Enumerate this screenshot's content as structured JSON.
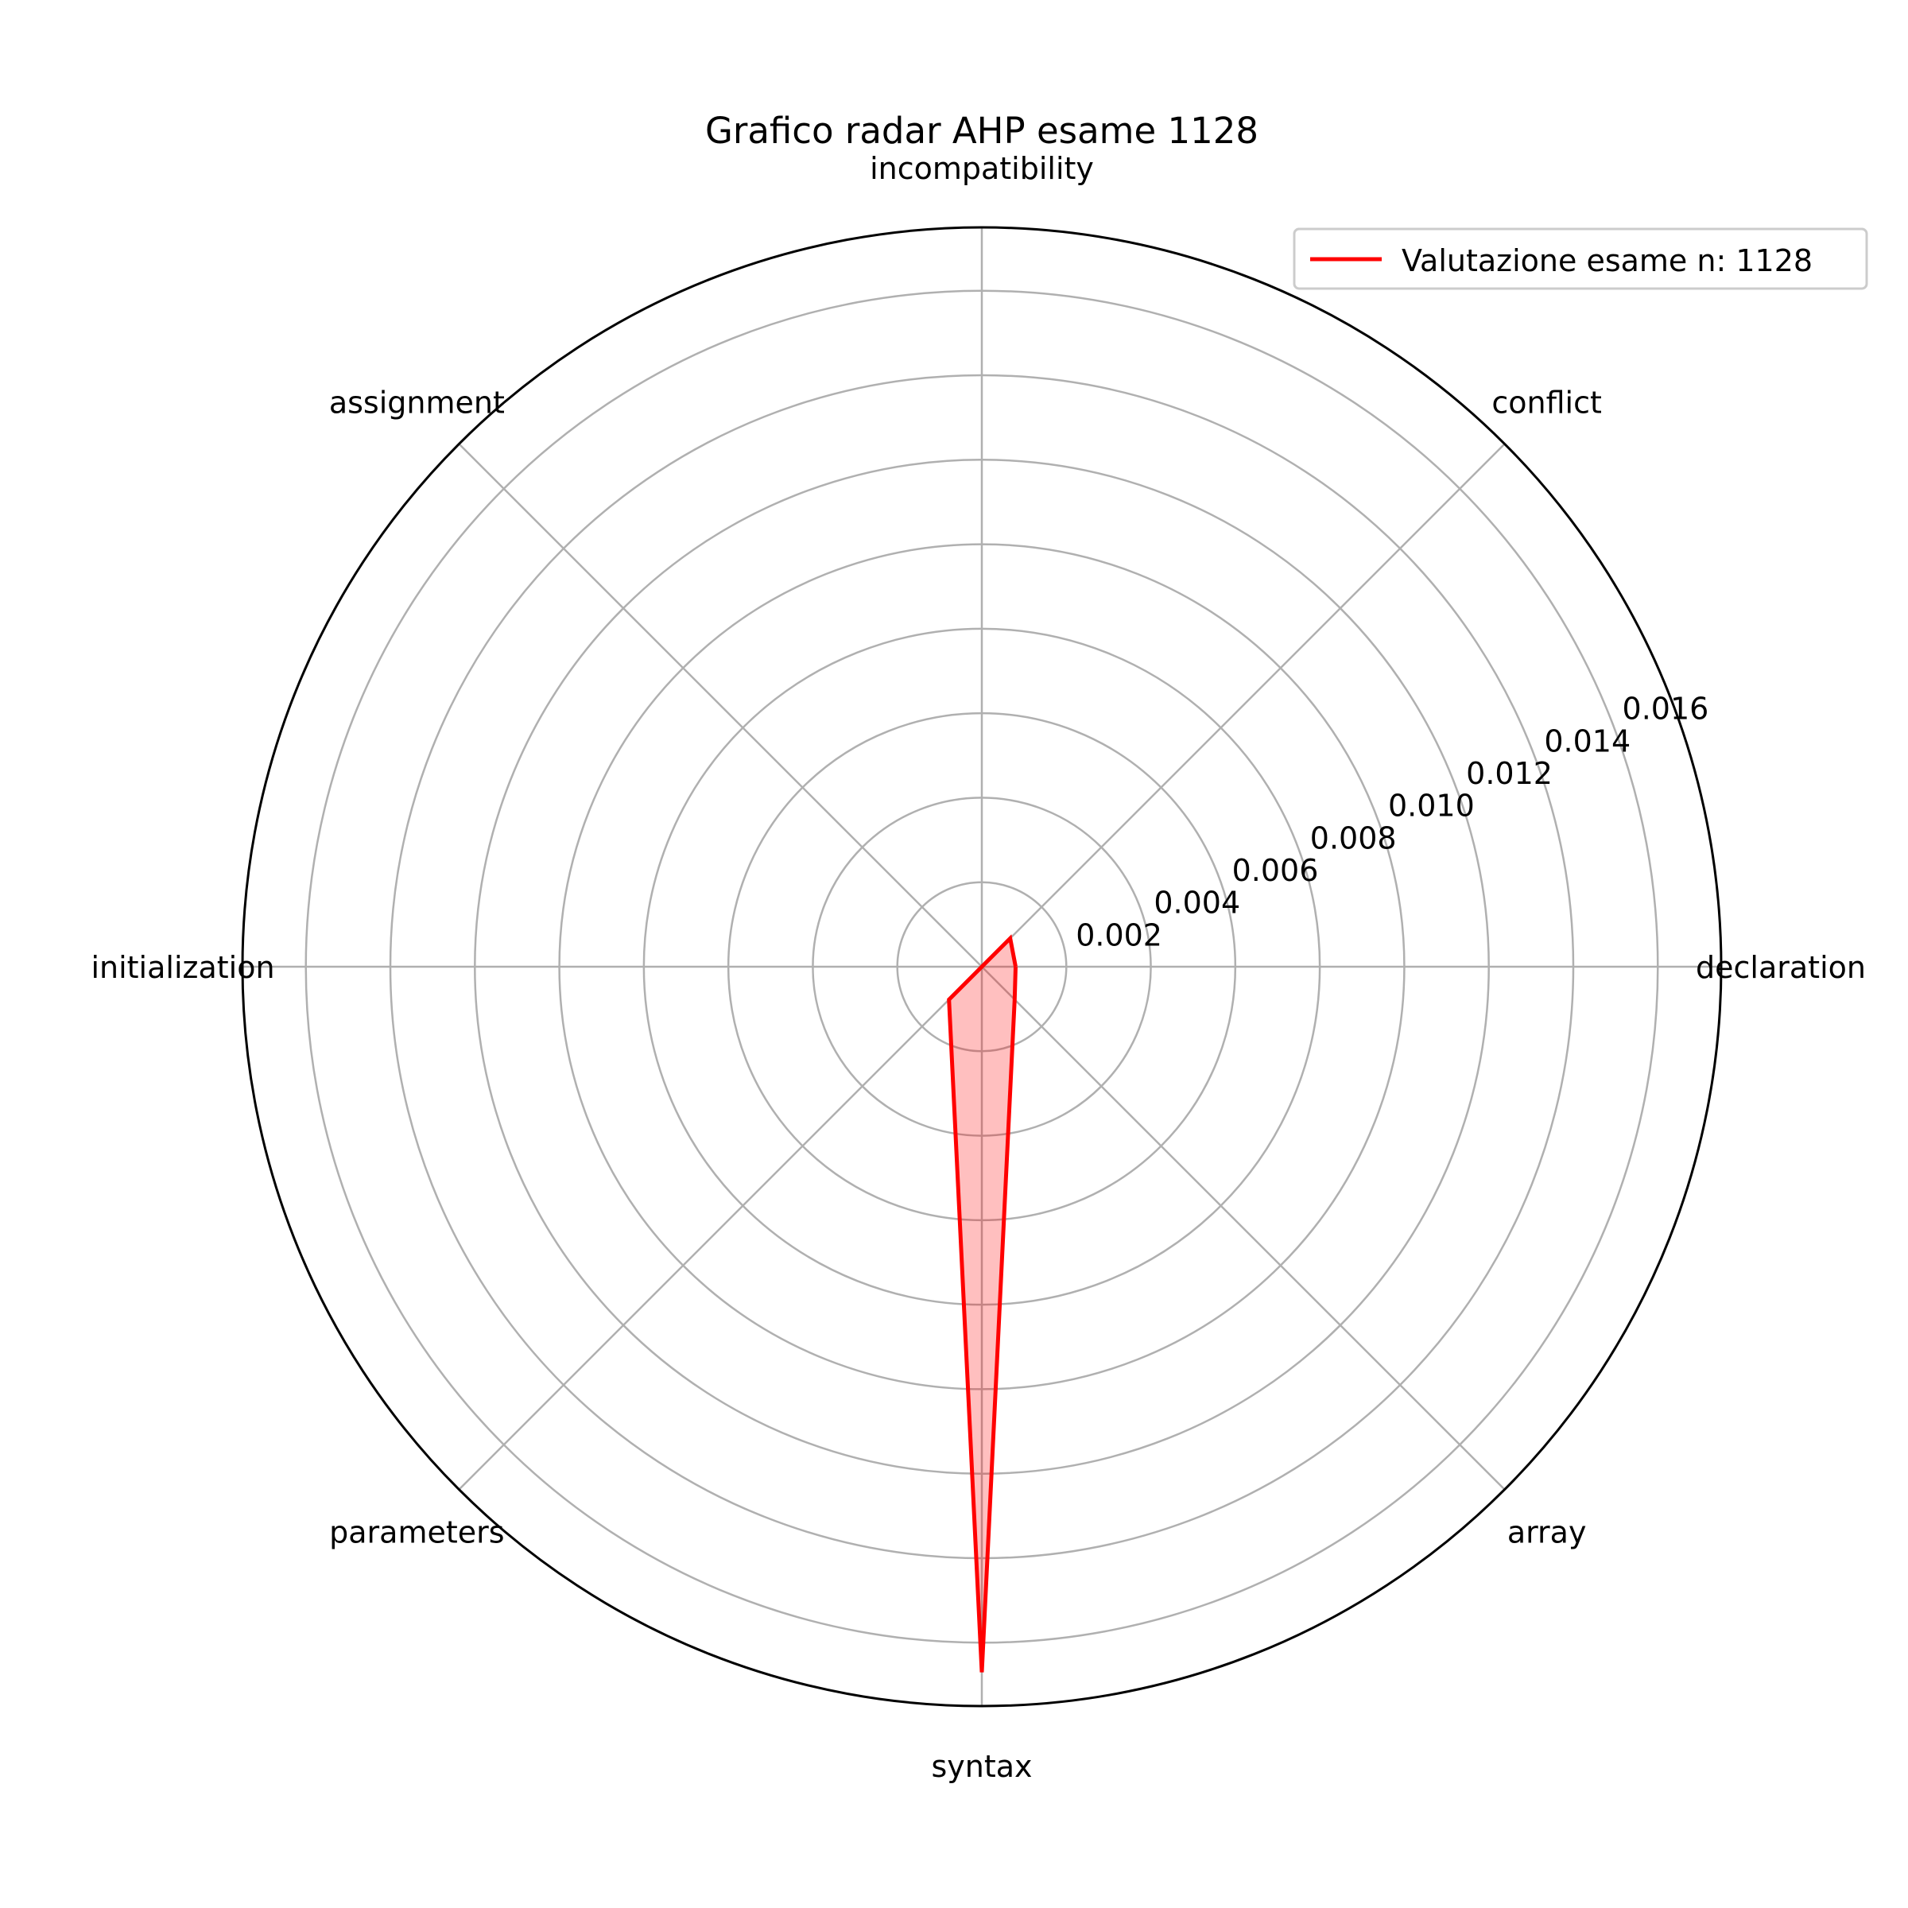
{
  "chart_data": {
    "type": "radar",
    "title": "Grafico radar AHP esame 1128",
    "categories": [
      "declaration",
      "conflict",
      "incompatibility",
      "assignment",
      "initialization",
      "parameters",
      "syntax",
      "array"
    ],
    "series": [
      {
        "name": "Valutazione esame n: 1128",
        "color": "#ff0000",
        "fill": "#ff0000",
        "values": [
          0.0008,
          0.00095,
          0.0,
          0.0,
          0.0,
          0.0011,
          0.0167,
          0.0011
        ]
      }
    ],
    "rlim": [
      0,
      0.0175
    ],
    "rticks": [
      0.002,
      0.004,
      0.006,
      0.008,
      0.01,
      0.012,
      0.014,
      0.016
    ],
    "rtick_labels": [
      "0.002",
      "0.004",
      "0.006",
      "0.008",
      "0.010",
      "0.012",
      "0.014",
      "0.016"
    ],
    "grid": true,
    "legend_position": "top-right",
    "legend_label": "Valutazione esame n: 1128"
  }
}
